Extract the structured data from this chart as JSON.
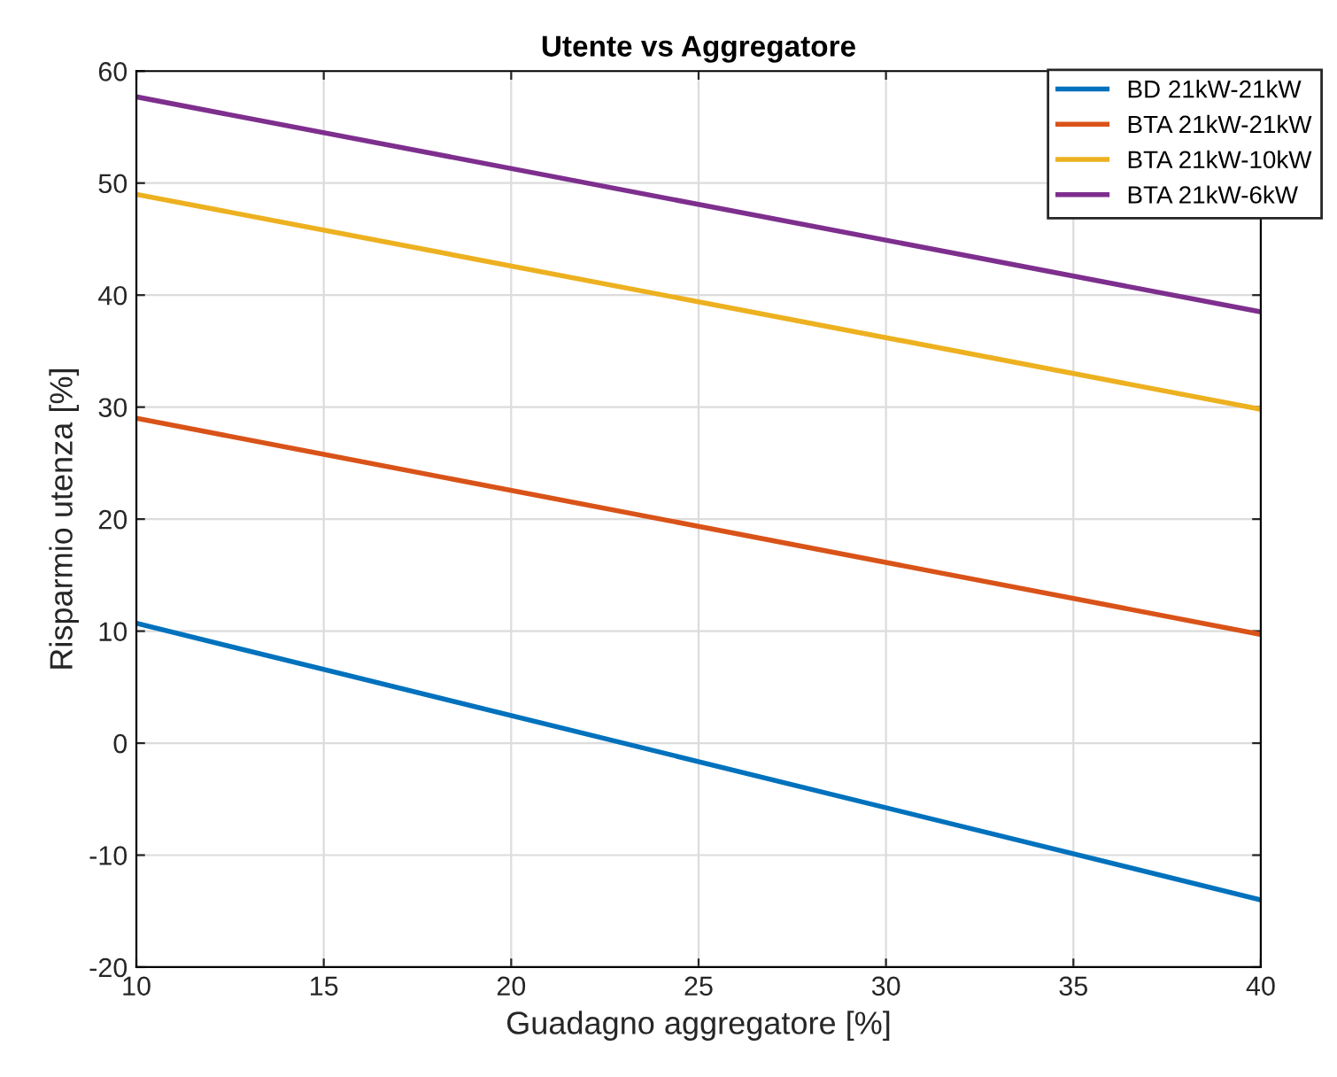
{
  "chart_data": {
    "type": "line",
    "title": "Utente vs Aggregatore",
    "xlabel": "Guadagno aggregatore [%]",
    "ylabel": "Risparmio utenza [%]",
    "x": [
      10,
      40
    ],
    "series": [
      {
        "name": "BD 21kW-21kW",
        "color": "#0072bd",
        "values": [
          10.7,
          -14
        ]
      },
      {
        "name": "BTA 21kW-21kW",
        "color": "#d95319",
        "values": [
          29,
          9.7
        ]
      },
      {
        "name": "BTA 21kW-10kW",
        "color": "#edb120",
        "values": [
          49,
          29.8
        ]
      },
      {
        "name": "BTA 21kW-6kW",
        "color": "#7e2f8e",
        "values": [
          57.7,
          38.5
        ]
      }
    ],
    "xlim": [
      10,
      40
    ],
    "xticks": [
      10,
      15,
      20,
      25,
      30,
      35,
      40
    ],
    "ylim": [
      -20,
      60
    ],
    "yticks": [
      -20,
      -10,
      0,
      10,
      20,
      30,
      40,
      50,
      60
    ],
    "grid": true,
    "legend": "top right",
    "marker": "none",
    "line_style": "solid"
  }
}
